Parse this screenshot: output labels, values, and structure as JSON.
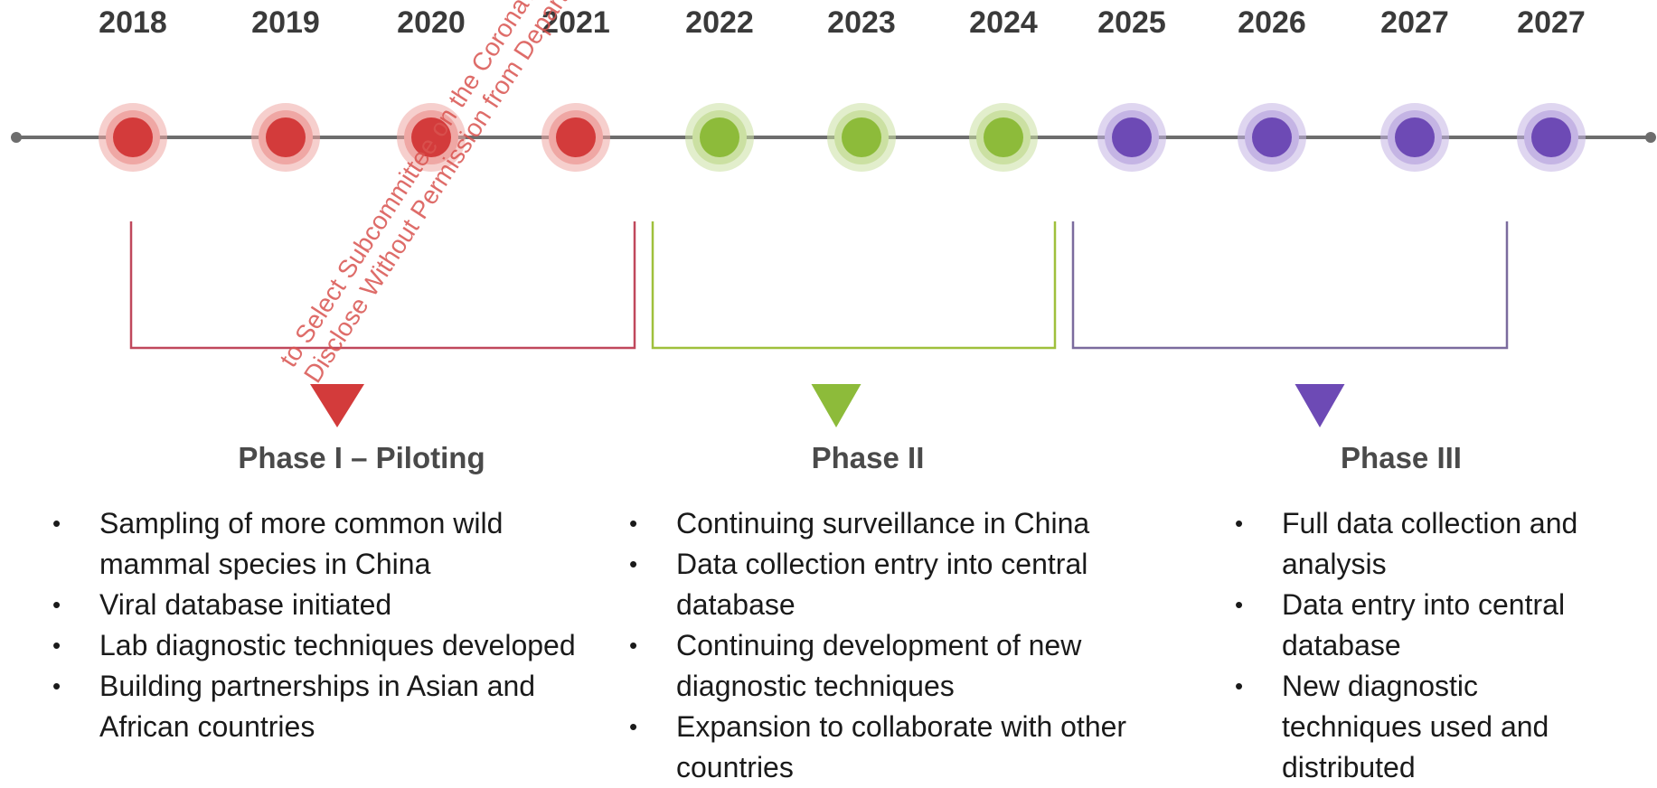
{
  "years": [
    "2018",
    "2019",
    "2020",
    "2021",
    "2022",
    "2023",
    "2024",
    "2025",
    "2026",
    "2027",
    "2027"
  ],
  "nodes": [
    {
      "phase": 0
    },
    {
      "phase": 0
    },
    {
      "phase": 0
    },
    {
      "phase": 0
    },
    {
      "phase": 1
    },
    {
      "phase": 1
    },
    {
      "phase": 1
    },
    {
      "phase": 2
    },
    {
      "phase": 2
    },
    {
      "phase": 2
    },
    {
      "phase": 2
    }
  ],
  "colors": {
    "axis": "#6d6d6d",
    "phase_colors": [
      "#d33b3b",
      "#8dbb3a",
      "#6d4ab5"
    ],
    "phase_halos": [
      "#efa7a4",
      "#cbe0a2",
      "#c4b4e4"
    ],
    "bracket_colors": [
      "#c0485c",
      "#9fc03c",
      "#7b6b9e"
    ]
  },
  "phases": [
    {
      "title": "Phase I – Piloting",
      "bullets": [
        "Sampling of more common wild mammal species in China",
        "Viral database initiated",
        "Lab diagnostic techniques developed",
        "Building partnerships in Asian and African countries"
      ]
    },
    {
      "title": "Phase II",
      "bullets": [
        "Continuing surveillance in China",
        "Data collection entry into central database",
        "Continuing development of new diagnostic techniques",
        "Expansion to collaborate with other countries"
      ]
    },
    {
      "title": "Phase III",
      "bullets": [
        "Full data collection and analysis",
        "Data entry into central database",
        "New diagnostic techniques used and distributed"
      ]
    }
  ],
  "watermark": [
    "to Select Subcommittee on the Coronavirus Pandemic Pursuant",
    "Disclose Without Permission from Department of Health and"
  ]
}
